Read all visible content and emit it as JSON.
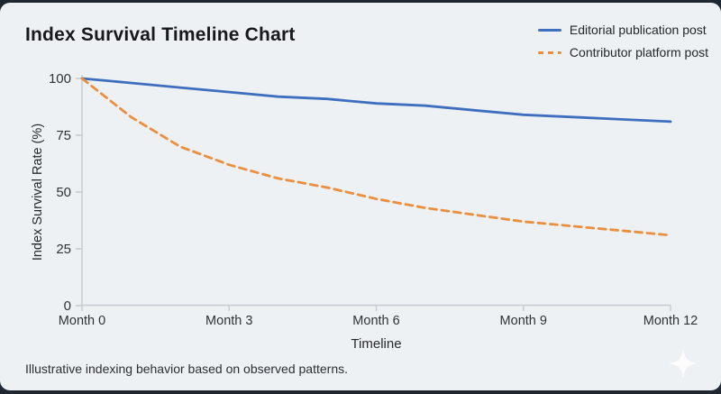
{
  "page": {
    "title": "Index Survival Timeline Chart",
    "footnote": "Illustrative indexing behavior based on observed patterns."
  },
  "colors": {
    "editorial": "#3e6fbf",
    "contributor": "#eb8f3e",
    "axis_line": "#c6cbd1",
    "tick_text": "#2e3338",
    "axis_label_text": "#26292e",
    "card_bg": "#eef1f4",
    "frame_bg": "#1f2731",
    "sparkle": "#ffffff"
  },
  "chart_data": {
    "type": "line",
    "title": "Index Survival Timeline Chart",
    "xlabel": "Timeline",
    "ylabel": "Index Survival Rate (%)",
    "x_months": [
      0,
      1,
      2,
      3,
      4,
      5,
      6,
      7,
      8,
      9,
      10,
      11,
      12
    ],
    "xtick_months": [
      0,
      3,
      6,
      9,
      12
    ],
    "categories": [
      "Month 0",
      "Month 3",
      "Month 6",
      "Month 9",
      "Month 12"
    ],
    "yticks": [
      0,
      25,
      50,
      75,
      100
    ],
    "ylim": [
      0,
      100
    ],
    "grid": false,
    "legend_position": "top-right",
    "series": [
      {
        "name": "Editorial publication post",
        "style": "solid",
        "color": "#3e6fbf",
        "values": [
          100,
          98,
          96,
          94,
          92,
          91,
          89,
          88,
          86,
          84,
          83,
          82,
          81
        ]
      },
      {
        "name": "Contributor platform post",
        "style": "dashed",
        "color": "#eb8f3e",
        "values": [
          100,
          83,
          70,
          62,
          56,
          52,
          47,
          43,
          40,
          37,
          35,
          33,
          31
        ]
      }
    ]
  }
}
